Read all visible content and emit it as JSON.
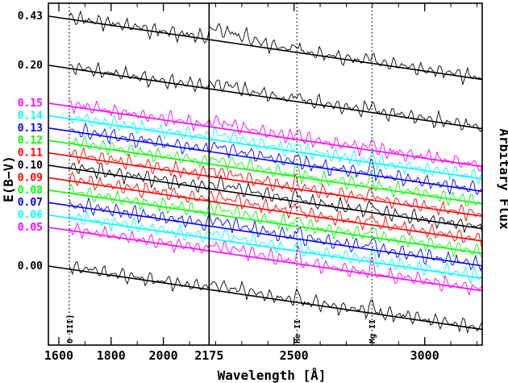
{
  "chart_data": {
    "type": "line",
    "title": "",
    "xlabel": "Wavelength [Å]",
    "ylabel": "E(B−V)",
    "ylabel_right": "Arbitary Flux",
    "xlim": [
      1560,
      3220
    ],
    "x_ticks": [
      1600,
      1800,
      2000,
      2175,
      2500,
      3000
    ],
    "x_tick_labels": [
      "1600",
      "1800",
      "2000",
      "2175",
      "2500",
      "3000"
    ],
    "vertical_lines": [
      {
        "x": 2175,
        "style": "solid",
        "label": ""
      },
      {
        "x": 1640,
        "style": "dotted",
        "label": "O III]"
      },
      {
        "x": 2511,
        "style": "dotted",
        "label": "He II"
      },
      {
        "x": 2798,
        "style": "dotted",
        "label": "Mg II"
      }
    ],
    "series": [
      {
        "name": "0.43",
        "ebv": 0.43,
        "color": "#000000",
        "line_start": 0.0,
        "line_end": 1.0
      },
      {
        "name": "0.20",
        "ebv": 0.2,
        "color": "#000000",
        "line_start": 0.12,
        "line_end": 0.92
      },
      {
        "name": "0.15",
        "ebv": 0.15,
        "color": "#ff00ff",
        "line_start": 0.26,
        "line_end": 0.7
      },
      {
        "name": "0.14",
        "ebv": 0.14,
        "color": "#00ffff",
        "line_start": 0.29,
        "line_end": 0.73
      },
      {
        "name": "0.13",
        "ebv": 0.13,
        "color": "#0000ff",
        "line_start": 0.32,
        "line_end": 0.76
      },
      {
        "name": "0.12",
        "ebv": 0.12,
        "color": "#00ff00",
        "line_start": 0.35,
        "line_end": 0.79
      },
      {
        "name": "0.11",
        "ebv": 0.11,
        "color": "#ff0000",
        "line_start": 0.38,
        "line_end": 0.82
      },
      {
        "name": "0.10",
        "ebv": 0.1,
        "color": "#000000",
        "line_start": 0.41,
        "line_end": 0.85
      },
      {
        "name": "0.09",
        "ebv": 0.09,
        "color": "#ff0000",
        "line_start": 0.44,
        "line_end": 0.88
      },
      {
        "name": "0.08",
        "ebv": 0.08,
        "color": "#00ff00",
        "line_start": 0.47,
        "line_end": 0.91
      },
      {
        "name": "0.07",
        "ebv": 0.07,
        "color": "#0000ff",
        "line_start": 0.5,
        "line_end": 0.94
      },
      {
        "name": "0.06",
        "ebv": 0.06,
        "color": "#00ffff",
        "line_start": 0.53,
        "line_end": 0.97
      },
      {
        "name": "0.05",
        "ebv": 0.05,
        "color": "#ff00ff",
        "line_start": 0.56,
        "line_end": 1.0
      },
      {
        "name": "0.00",
        "ebv": 0.0,
        "color": "#000000",
        "line_start": 0.7,
        "line_end": 1.12
      }
    ],
    "grid": false,
    "legend": "none"
  }
}
